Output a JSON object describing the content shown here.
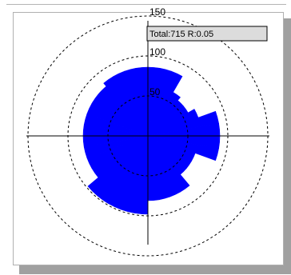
{
  "chart_data": {
    "type": "rose",
    "title": "",
    "r_ticks": [
      50,
      100,
      150
    ],
    "r_tick_labels": [
      "50",
      "100",
      "150"
    ],
    "r_max": 150,
    "sector_width_deg": 10,
    "direction": "clockwise from north",
    "fill_color": "#0000ff",
    "ring_style": "dashed",
    "stats": {
      "total_label": "Total:",
      "total": 715,
      "r_label": "R:",
      "r": 0.05
    },
    "sectors": [
      {
        "from": 0,
        "to": 10,
        "value": 86
      },
      {
        "from": 10,
        "to": 20,
        "value": 86
      },
      {
        "from": 20,
        "to": 30,
        "value": 86
      },
      {
        "from": 30,
        "to": 40,
        "value": 63
      },
      {
        "from": 40,
        "to": 50,
        "value": 58
      },
      {
        "from": 50,
        "to": 60,
        "value": 58
      },
      {
        "from": 60,
        "to": 70,
        "value": 67
      },
      {
        "from": 70,
        "to": 80,
        "value": 90
      },
      {
        "from": 80,
        "to": 90,
        "value": 90
      },
      {
        "from": 90,
        "to": 100,
        "value": 90
      },
      {
        "from": 100,
        "to": 110,
        "value": 90
      },
      {
        "from": 110,
        "to": 120,
        "value": 63
      },
      {
        "from": 120,
        "to": 130,
        "value": 63
      },
      {
        "from": 130,
        "to": 140,
        "value": 63
      },
      {
        "from": 140,
        "to": 150,
        "value": 81
      },
      {
        "from": 150,
        "to": 160,
        "value": 81
      },
      {
        "from": 160,
        "to": 170,
        "value": 81
      },
      {
        "from": 170,
        "to": 180,
        "value": 81
      },
      {
        "from": 180,
        "to": 190,
        "value": 98
      },
      {
        "from": 190,
        "to": 200,
        "value": 98
      },
      {
        "from": 200,
        "to": 210,
        "value": 98
      },
      {
        "from": 210,
        "to": 220,
        "value": 98
      },
      {
        "from": 220,
        "to": 230,
        "value": 98
      },
      {
        "from": 230,
        "to": 240,
        "value": 81
      },
      {
        "from": 240,
        "to": 250,
        "value": 81
      },
      {
        "from": 250,
        "to": 260,
        "value": 81
      },
      {
        "from": 260,
        "to": 270,
        "value": 81
      },
      {
        "from": 270,
        "to": 280,
        "value": 81
      },
      {
        "from": 280,
        "to": 290,
        "value": 81
      },
      {
        "from": 290,
        "to": 300,
        "value": 81
      },
      {
        "from": 300,
        "to": 310,
        "value": 81
      },
      {
        "from": 310,
        "to": 320,
        "value": 81
      },
      {
        "from": 320,
        "to": 330,
        "value": 86
      },
      {
        "from": 330,
        "to": 340,
        "value": 86
      },
      {
        "from": 340,
        "to": 350,
        "value": 86
      },
      {
        "from": 350,
        "to": 360,
        "value": 86
      }
    ]
  }
}
